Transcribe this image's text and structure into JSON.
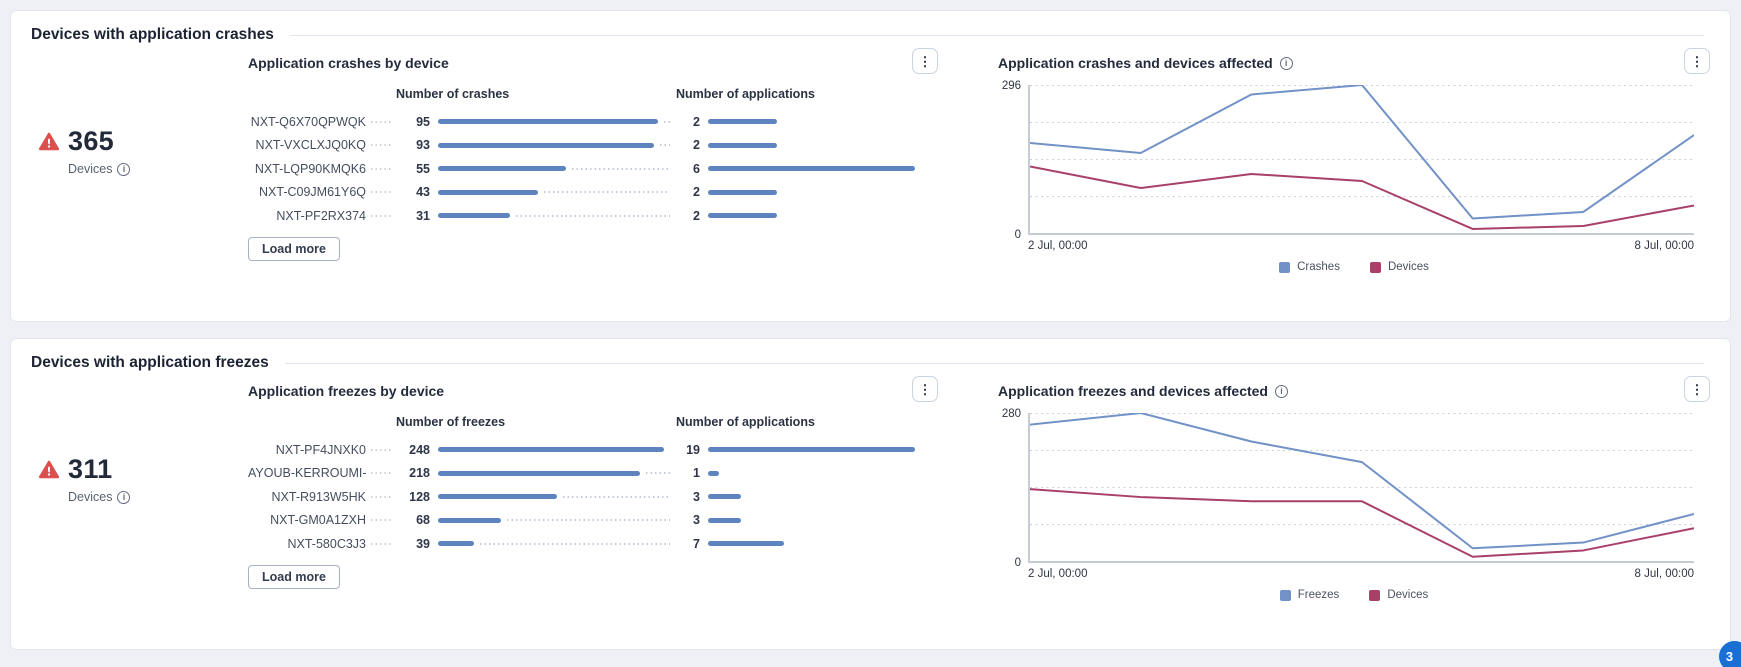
{
  "icons": {
    "info": "i",
    "kebab": "⋮",
    "warning": "!"
  },
  "colors": {
    "bar": "#5e84c0",
    "line_blue": "#7191c7",
    "line_red": "#a84069",
    "warning": "#db4f4e",
    "fab": "#1a6fd4"
  },
  "page": {
    "fab_badge": "3"
  },
  "sections": [
    {
      "title": "Devices with application crashes",
      "stat_value": "365",
      "stat_label": "Devices",
      "load_more": "Load more"
    },
    {
      "title": "Devices with application freezes",
      "stat_value": "311",
      "stat_label": "Devices",
      "load_more": "Load more"
    }
  ],
  "chart_data": [
    {
      "type": "bar",
      "title": "Application crashes by device",
      "categories": [
        "NXT-Q6X70QPWQK",
        "NXT-VXCLXJQ0KQ",
        "NXT-LQP90KMQK6",
        "NXT-C09JM61Y6Q",
        "NXT-PF2RX374"
      ],
      "series": [
        {
          "name": "Number of crashes",
          "values": [
            95,
            93,
            55,
            43,
            31
          ]
        },
        {
          "name": "Number of applications",
          "values": [
            2,
            2,
            6,
            2,
            2
          ]
        }
      ],
      "scale_max": 100
    },
    {
      "type": "line",
      "title": "Application crashes and devices affected",
      "x_labels": [
        "2 Jul, 00:00",
        "8 Jul, 00:00"
      ],
      "ylim": [
        0,
        296
      ],
      "grid": "dotted-horizontal",
      "legend_position": "bottom",
      "series": [
        {
          "name": "Crashes",
          "color": "#7191c7",
          "values": [
            180,
            160,
            277,
            296,
            29,
            42,
            196
          ]
        },
        {
          "name": "Devices",
          "color": "#a84069",
          "values": [
            133,
            90,
            118,
            104,
            8,
            14,
            55
          ]
        }
      ]
    },
    {
      "type": "bar",
      "title": "Application freezes by device",
      "categories": [
        "NXT-PF4JNXK0",
        "AYOUB-KERROUMI-",
        "NXT-R913W5HK",
        "NXT-GM0A1ZXH",
        "NXT-580C3J3"
      ],
      "series": [
        {
          "name": "Number of freezes",
          "values": [
            248,
            218,
            128,
            68,
            39
          ]
        },
        {
          "name": "Number of applications",
          "values": [
            19,
            1,
            3,
            3,
            7
          ]
        }
      ],
      "scale_max": 250
    },
    {
      "type": "line",
      "title": "Application freezes and devices affected",
      "x_labels": [
        "2 Jul, 00:00",
        "8 Jul, 00:00"
      ],
      "ylim": [
        0,
        280
      ],
      "grid": "dotted-horizontal",
      "legend_position": "bottom",
      "series": [
        {
          "name": "Freezes",
          "color": "#7191c7",
          "values": [
            258,
            280,
            226,
            187,
            24,
            35,
            89
          ]
        },
        {
          "name": "Devices",
          "color": "#a84069",
          "values": [
            136,
            121,
            113,
            113,
            8,
            20,
            62
          ]
        }
      ]
    }
  ]
}
